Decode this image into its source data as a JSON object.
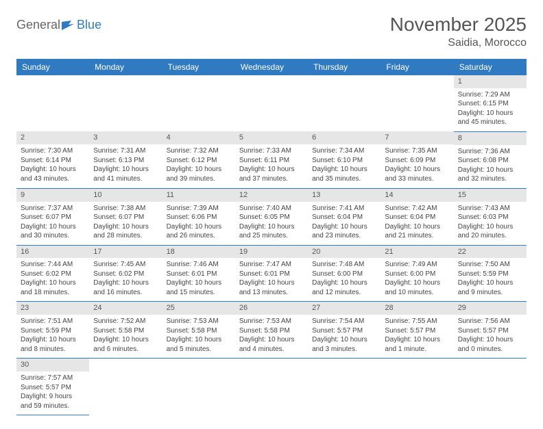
{
  "logo": {
    "text_general": "General",
    "text_blue": "Blue"
  },
  "title": "November 2025",
  "location": "Saidia, Morocco",
  "colors": {
    "header_bg": "#2f7ac0",
    "header_text": "#ffffff",
    "daynum_bg": "#e6e6e6",
    "daynum_text": "#555555",
    "cell_border": "#2f7ac0",
    "body_text": "#444444",
    "title_text": "#555555",
    "page_bg": "#ffffff"
  },
  "typography": {
    "title_fontsize": 28,
    "location_fontsize": 16,
    "header_fontsize": 12,
    "daynum_fontsize": 11,
    "body_fontsize": 10
  },
  "day_headers": [
    "Sunday",
    "Monday",
    "Tuesday",
    "Wednesday",
    "Thursday",
    "Friday",
    "Saturday"
  ],
  "weeks": [
    [
      null,
      null,
      null,
      null,
      null,
      null,
      {
        "n": "1",
        "sunrise": "Sunrise: 7:29 AM",
        "sunset": "Sunset: 6:15 PM",
        "daylight": "Daylight: 10 hours and 45 minutes."
      }
    ],
    [
      {
        "n": "2",
        "sunrise": "Sunrise: 7:30 AM",
        "sunset": "Sunset: 6:14 PM",
        "daylight": "Daylight: 10 hours and 43 minutes."
      },
      {
        "n": "3",
        "sunrise": "Sunrise: 7:31 AM",
        "sunset": "Sunset: 6:13 PM",
        "daylight": "Daylight: 10 hours and 41 minutes."
      },
      {
        "n": "4",
        "sunrise": "Sunrise: 7:32 AM",
        "sunset": "Sunset: 6:12 PM",
        "daylight": "Daylight: 10 hours and 39 minutes."
      },
      {
        "n": "5",
        "sunrise": "Sunrise: 7:33 AM",
        "sunset": "Sunset: 6:11 PM",
        "daylight": "Daylight: 10 hours and 37 minutes."
      },
      {
        "n": "6",
        "sunrise": "Sunrise: 7:34 AM",
        "sunset": "Sunset: 6:10 PM",
        "daylight": "Daylight: 10 hours and 35 minutes."
      },
      {
        "n": "7",
        "sunrise": "Sunrise: 7:35 AM",
        "sunset": "Sunset: 6:09 PM",
        "daylight": "Daylight: 10 hours and 33 minutes."
      },
      {
        "n": "8",
        "sunrise": "Sunrise: 7:36 AM",
        "sunset": "Sunset: 6:08 PM",
        "daylight": "Daylight: 10 hours and 32 minutes."
      }
    ],
    [
      {
        "n": "9",
        "sunrise": "Sunrise: 7:37 AM",
        "sunset": "Sunset: 6:07 PM",
        "daylight": "Daylight: 10 hours and 30 minutes."
      },
      {
        "n": "10",
        "sunrise": "Sunrise: 7:38 AM",
        "sunset": "Sunset: 6:07 PM",
        "daylight": "Daylight: 10 hours and 28 minutes."
      },
      {
        "n": "11",
        "sunrise": "Sunrise: 7:39 AM",
        "sunset": "Sunset: 6:06 PM",
        "daylight": "Daylight: 10 hours and 26 minutes."
      },
      {
        "n": "12",
        "sunrise": "Sunrise: 7:40 AM",
        "sunset": "Sunset: 6:05 PM",
        "daylight": "Daylight: 10 hours and 25 minutes."
      },
      {
        "n": "13",
        "sunrise": "Sunrise: 7:41 AM",
        "sunset": "Sunset: 6:04 PM",
        "daylight": "Daylight: 10 hours and 23 minutes."
      },
      {
        "n": "14",
        "sunrise": "Sunrise: 7:42 AM",
        "sunset": "Sunset: 6:04 PM",
        "daylight": "Daylight: 10 hours and 21 minutes."
      },
      {
        "n": "15",
        "sunrise": "Sunrise: 7:43 AM",
        "sunset": "Sunset: 6:03 PM",
        "daylight": "Daylight: 10 hours and 20 minutes."
      }
    ],
    [
      {
        "n": "16",
        "sunrise": "Sunrise: 7:44 AM",
        "sunset": "Sunset: 6:02 PM",
        "daylight": "Daylight: 10 hours and 18 minutes."
      },
      {
        "n": "17",
        "sunrise": "Sunrise: 7:45 AM",
        "sunset": "Sunset: 6:02 PM",
        "daylight": "Daylight: 10 hours and 16 minutes."
      },
      {
        "n": "18",
        "sunrise": "Sunrise: 7:46 AM",
        "sunset": "Sunset: 6:01 PM",
        "daylight": "Daylight: 10 hours and 15 minutes."
      },
      {
        "n": "19",
        "sunrise": "Sunrise: 7:47 AM",
        "sunset": "Sunset: 6:01 PM",
        "daylight": "Daylight: 10 hours and 13 minutes."
      },
      {
        "n": "20",
        "sunrise": "Sunrise: 7:48 AM",
        "sunset": "Sunset: 6:00 PM",
        "daylight": "Daylight: 10 hours and 12 minutes."
      },
      {
        "n": "21",
        "sunrise": "Sunrise: 7:49 AM",
        "sunset": "Sunset: 6:00 PM",
        "daylight": "Daylight: 10 hours and 10 minutes."
      },
      {
        "n": "22",
        "sunrise": "Sunrise: 7:50 AM",
        "sunset": "Sunset: 5:59 PM",
        "daylight": "Daylight: 10 hours and 9 minutes."
      }
    ],
    [
      {
        "n": "23",
        "sunrise": "Sunrise: 7:51 AM",
        "sunset": "Sunset: 5:59 PM",
        "daylight": "Daylight: 10 hours and 8 minutes."
      },
      {
        "n": "24",
        "sunrise": "Sunrise: 7:52 AM",
        "sunset": "Sunset: 5:58 PM",
        "daylight": "Daylight: 10 hours and 6 minutes."
      },
      {
        "n": "25",
        "sunrise": "Sunrise: 7:53 AM",
        "sunset": "Sunset: 5:58 PM",
        "daylight": "Daylight: 10 hours and 5 minutes."
      },
      {
        "n": "26",
        "sunrise": "Sunrise: 7:53 AM",
        "sunset": "Sunset: 5:58 PM",
        "daylight": "Daylight: 10 hours and 4 minutes."
      },
      {
        "n": "27",
        "sunrise": "Sunrise: 7:54 AM",
        "sunset": "Sunset: 5:57 PM",
        "daylight": "Daylight: 10 hours and 3 minutes."
      },
      {
        "n": "28",
        "sunrise": "Sunrise: 7:55 AM",
        "sunset": "Sunset: 5:57 PM",
        "daylight": "Daylight: 10 hours and 1 minute."
      },
      {
        "n": "29",
        "sunrise": "Sunrise: 7:56 AM",
        "sunset": "Sunset: 5:57 PM",
        "daylight": "Daylight: 10 hours and 0 minutes."
      }
    ],
    [
      {
        "n": "30",
        "sunrise": "Sunrise: 7:57 AM",
        "sunset": "Sunset: 5:57 PM",
        "daylight": "Daylight: 9 hours and 59 minutes."
      },
      null,
      null,
      null,
      null,
      null,
      null
    ]
  ]
}
